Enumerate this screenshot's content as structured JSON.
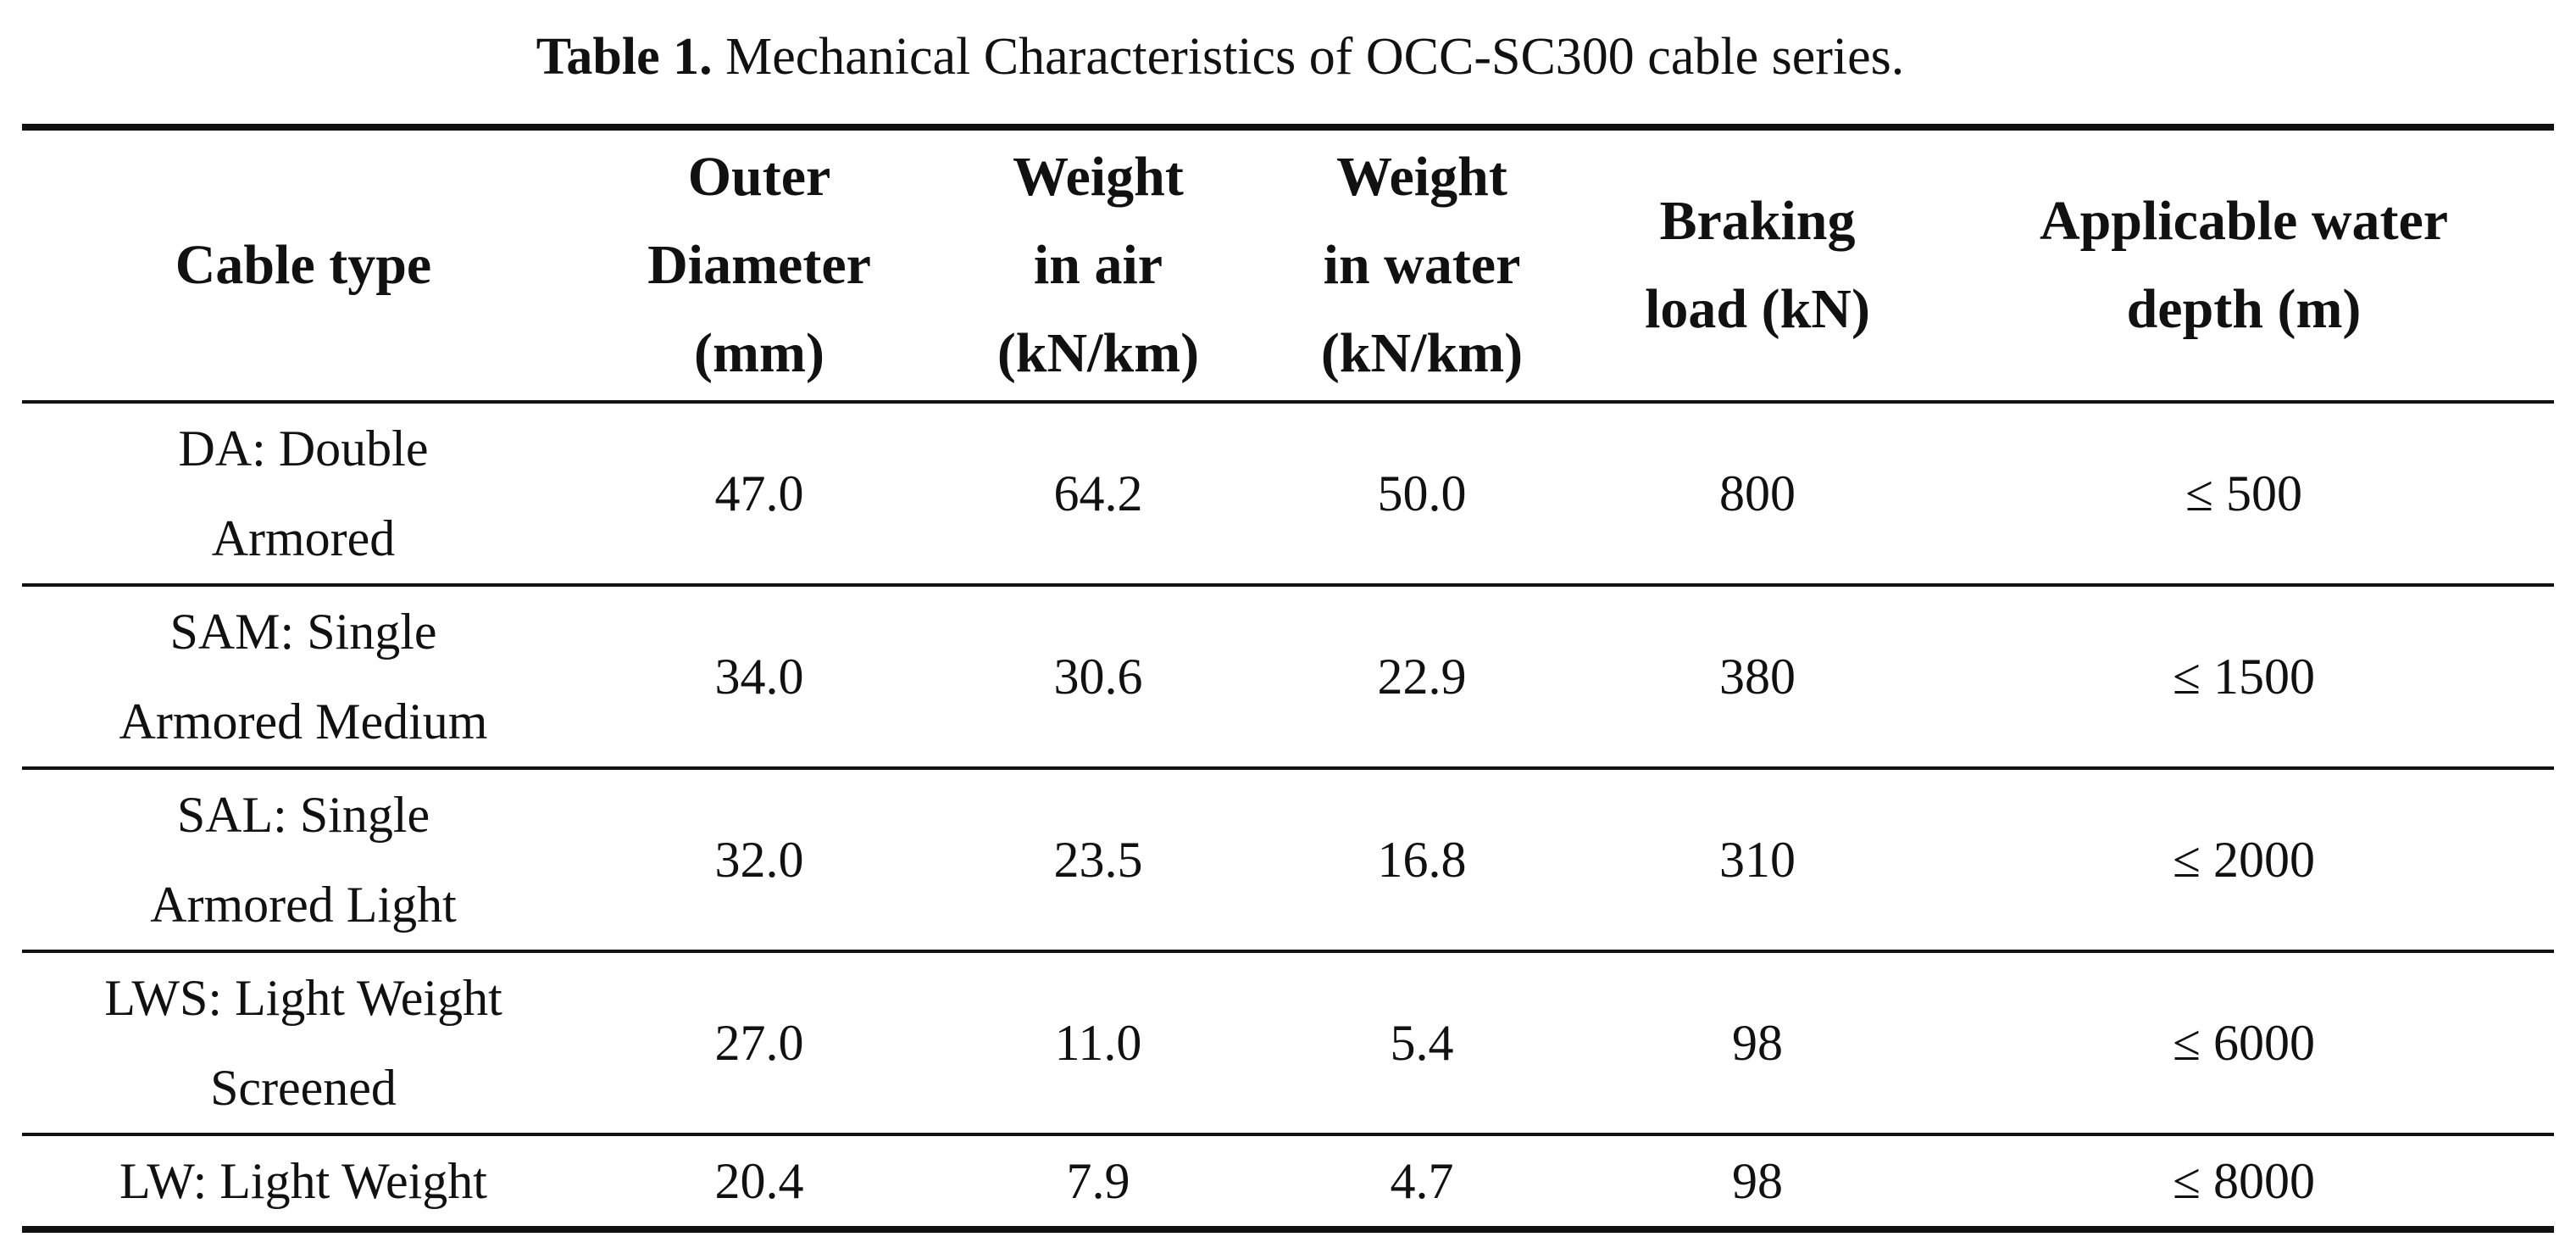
{
  "caption": {
    "label": "Table 1.",
    "text": "Mechanical Characteristics of OCC-SC300 cable series."
  },
  "table": {
    "headers": [
      [
        "Cable type"
      ],
      [
        "Outer",
        "Diameter",
        "(mm)"
      ],
      [
        "Weight",
        "in air",
        "(kN/km)"
      ],
      [
        "Weight",
        "in water",
        "(kN/km)"
      ],
      [
        "Braking",
        "load (kN)"
      ],
      [
        "Applicable water",
        "depth (m)"
      ]
    ],
    "rows": [
      {
        "type_lines": [
          "DA: Double",
          "Armored"
        ],
        "outer_diameter": "47.0",
        "weight_air": "64.2",
        "weight_water": "50.0",
        "braking_load": "800",
        "water_depth": "≤ 500"
      },
      {
        "type_lines": [
          "SAM: Single",
          "Armored Medium"
        ],
        "outer_diameter": "34.0",
        "weight_air": "30.6",
        "weight_water": "22.9",
        "braking_load": "380",
        "water_depth": "≤ 1500"
      },
      {
        "type_lines": [
          "SAL: Single",
          "Armored Light"
        ],
        "outer_diameter": "32.0",
        "weight_air": "23.5",
        "weight_water": "16.8",
        "braking_load": "310",
        "water_depth": "≤ 2000"
      },
      {
        "type_lines": [
          "LWS: Light Weight",
          "Screened"
        ],
        "outer_diameter": "27.0",
        "weight_air": "11.0",
        "weight_water": "5.4",
        "braking_load": "98",
        "water_depth": "≤ 6000"
      },
      {
        "type_lines": [
          "LW: Light Weight"
        ],
        "outer_diameter": "20.4",
        "weight_air": "7.9",
        "weight_water": "4.7",
        "braking_load": "98",
        "water_depth": "≤ 8000"
      }
    ]
  }
}
